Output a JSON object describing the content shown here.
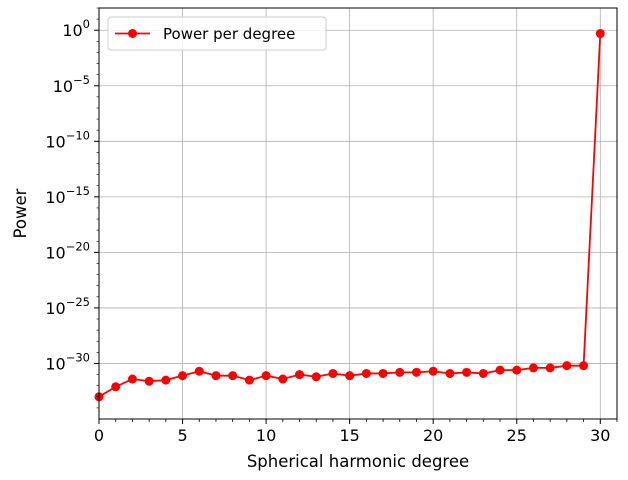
{
  "chart_data": {
    "type": "line",
    "xlabel": "Spherical harmonic degree",
    "ylabel": "Power",
    "xlim": [
      0,
      31
    ],
    "ylim_log10": [
      -35,
      2
    ],
    "y_scale": "log",
    "grid": true,
    "legend_position": "top-left",
    "x_ticks": [
      0,
      5,
      10,
      15,
      20,
      25,
      30
    ],
    "y_ticks": [
      {
        "exp": 0,
        "base": "10",
        "sup": "0"
      },
      {
        "exp": -5,
        "base": "10",
        "sup": "−5"
      },
      {
        "exp": -10,
        "base": "10",
        "sup": "−10"
      },
      {
        "exp": -15,
        "base": "10",
        "sup": "−15"
      },
      {
        "exp": -20,
        "base": "10",
        "sup": "−20"
      },
      {
        "exp": -25,
        "base": "10",
        "sup": "−25"
      },
      {
        "exp": -30,
        "base": "10",
        "sup": "−30"
      }
    ],
    "series": [
      {
        "name": "Power per degree",
        "color": "#ff0000",
        "x": [
          0,
          1,
          2,
          3,
          4,
          5,
          6,
          7,
          8,
          9,
          10,
          11,
          12,
          13,
          14,
          15,
          16,
          17,
          18,
          19,
          20,
          21,
          22,
          23,
          24,
          25,
          26,
          27,
          28,
          29,
          30
        ],
        "log10_y": [
          -33.0,
          -32.1,
          -31.4,
          -31.6,
          -31.5,
          -31.1,
          -30.7,
          -31.1,
          -31.1,
          -31.5,
          -31.1,
          -31.4,
          -31.0,
          -31.2,
          -30.9,
          -31.1,
          -30.9,
          -30.9,
          -30.8,
          -30.8,
          -30.7,
          -30.9,
          -30.8,
          -30.9,
          -30.6,
          -30.6,
          -30.4,
          -30.4,
          -30.2,
          -30.2,
          -0.3
        ]
      }
    ]
  }
}
